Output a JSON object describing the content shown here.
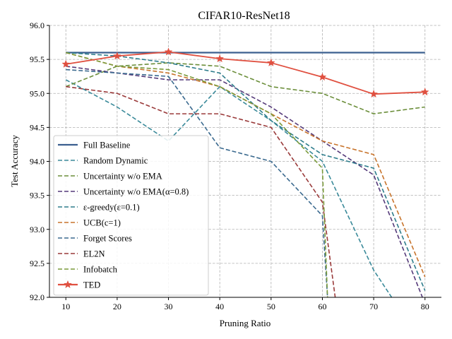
{
  "chart_data": {
    "type": "line",
    "title": "CIFAR10-ResNet18",
    "xlabel": "Pruning Ratio",
    "ylabel": "Test Accuracy",
    "xlim": [
      6.8,
      83.2
    ],
    "ylim": [
      92.0,
      96.0
    ],
    "xticks": [
      10,
      20,
      30,
      40,
      50,
      60,
      70,
      80
    ],
    "yticks": [
      "92.0",
      "92.5",
      "93.0",
      "93.5",
      "94.0",
      "94.5",
      "95.0",
      "95.5",
      "96.0"
    ],
    "grid": true,
    "legend_position": "lower-left",
    "series": [
      {
        "name": "Full Baseline",
        "color": "#3b5f8f",
        "style": "solid",
        "marker": "none",
        "x": [
          10,
          80
        ],
        "y": [
          95.6,
          95.6
        ]
      },
      {
        "name": "Random Dynamic",
        "color": "#3a8a9a",
        "style": "dashed",
        "marker": "none",
        "x": [
          10,
          20,
          30,
          40,
          50,
          60,
          70,
          73.5
        ],
        "y": [
          95.2,
          94.8,
          94.3,
          95.1,
          94.6,
          94.0,
          92.4,
          92.0
        ]
      },
      {
        "name": "Uncertainty w/o EMA",
        "color": "#6b8e3a",
        "style": "dashed",
        "marker": "none",
        "x": [
          10,
          20,
          30,
          40,
          50,
          60,
          70,
          80
        ],
        "y": [
          95.1,
          95.4,
          95.45,
          95.4,
          95.1,
          95.0,
          94.7,
          94.8
        ]
      },
      {
        "name": "Uncertainty w/o EMA(α=0.8)",
        "color": "#553a7a",
        "style": "dashed",
        "marker": "none",
        "x": [
          10,
          20,
          30,
          40,
          50,
          60,
          70,
          79.5
        ],
        "y": [
          95.4,
          95.3,
          95.2,
          95.2,
          94.8,
          94.3,
          93.8,
          92.0
        ]
      },
      {
        "name": "ε-greedy(ε=0.1)",
        "color": "#2e7d8c",
        "style": "dashed",
        "marker": "none",
        "x": [
          10,
          20,
          30,
          40,
          50,
          60,
          70,
          80
        ],
        "y": [
          95.6,
          95.55,
          95.45,
          95.3,
          94.6,
          94.1,
          93.9,
          92.1
        ]
      },
      {
        "name": "UCB(c=1)",
        "color": "#c8742c",
        "style": "dashed",
        "marker": "none",
        "x": [
          10,
          20,
          30,
          40,
          50,
          60,
          70,
          80
        ],
        "y": [
          95.6,
          95.4,
          95.3,
          95.1,
          94.7,
          94.3,
          94.1,
          92.3
        ]
      },
      {
        "name": "Forget Scores",
        "color": "#3b6a8f",
        "style": "dashed",
        "marker": "none",
        "x": [
          10,
          20,
          30,
          40,
          50,
          60,
          61
        ],
        "y": [
          95.35,
          95.3,
          95.25,
          94.2,
          94.0,
          93.2,
          92.0
        ]
      },
      {
        "name": "EL2N",
        "color": "#9a3a3a",
        "style": "dashed",
        "marker": "none",
        "x": [
          10,
          20,
          30,
          40,
          50,
          60,
          62.5
        ],
        "y": [
          95.1,
          95.0,
          94.7,
          94.7,
          94.5,
          93.4,
          92.0
        ]
      },
      {
        "name": "Infobatch",
        "color": "#7a9a3a",
        "style": "dashed",
        "marker": "none",
        "x": [
          10,
          20,
          30,
          40,
          50,
          60,
          61
        ],
        "y": [
          95.6,
          95.4,
          95.35,
          95.1,
          94.7,
          93.9,
          92.0
        ]
      },
      {
        "name": "TED",
        "color": "#e05040",
        "style": "solid",
        "marker": "star",
        "x": [
          10,
          20,
          30,
          40,
          50,
          60,
          70,
          80
        ],
        "y": [
          95.43,
          95.55,
          95.61,
          95.51,
          95.45,
          95.24,
          94.99,
          95.02
        ]
      }
    ]
  }
}
